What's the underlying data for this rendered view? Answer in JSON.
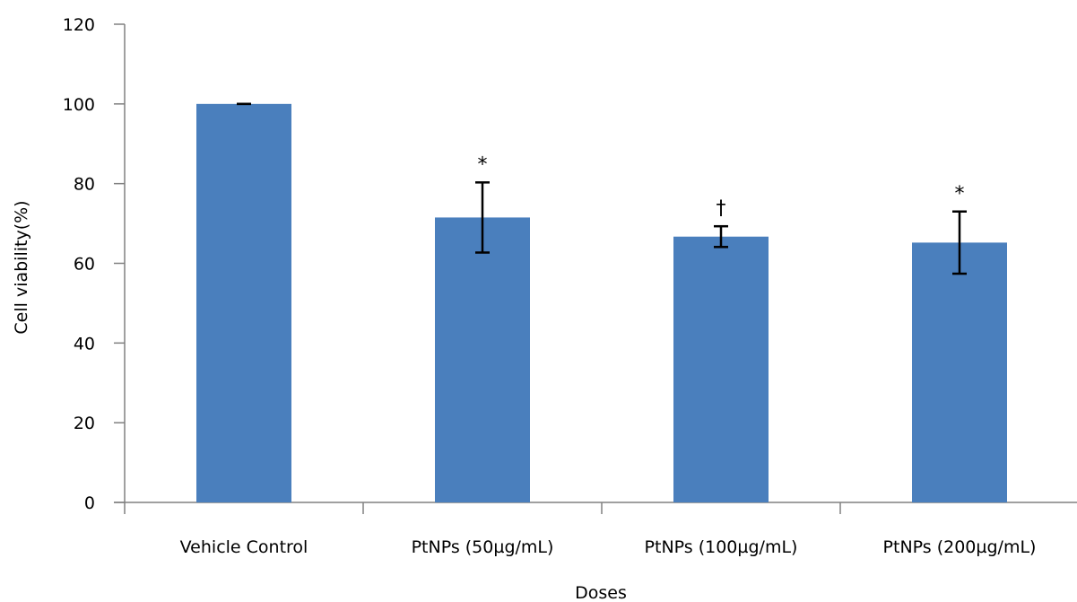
{
  "chart_data": {
    "type": "bar",
    "title": "",
    "xlabel": "Doses",
    "ylabel": "Cell viability(%)",
    "ylim": [
      0,
      120
    ],
    "yticks": [
      0,
      20,
      40,
      60,
      80,
      100,
      120
    ],
    "grid": false,
    "categories": [
      "Vehicle Control",
      "PtNPs (50µg/mL)",
      "PtNPs (100µg/mL)",
      "PtNPs (200µg/mL)"
    ],
    "series": [
      {
        "values": [
          100,
          71.5,
          66.7,
          65.2
        ],
        "error": [
          0,
          8.8,
          2.6,
          7.8
        ],
        "annotations": [
          "",
          "*",
          "†",
          "*"
        ],
        "color": "#4a7fbd"
      }
    ]
  }
}
